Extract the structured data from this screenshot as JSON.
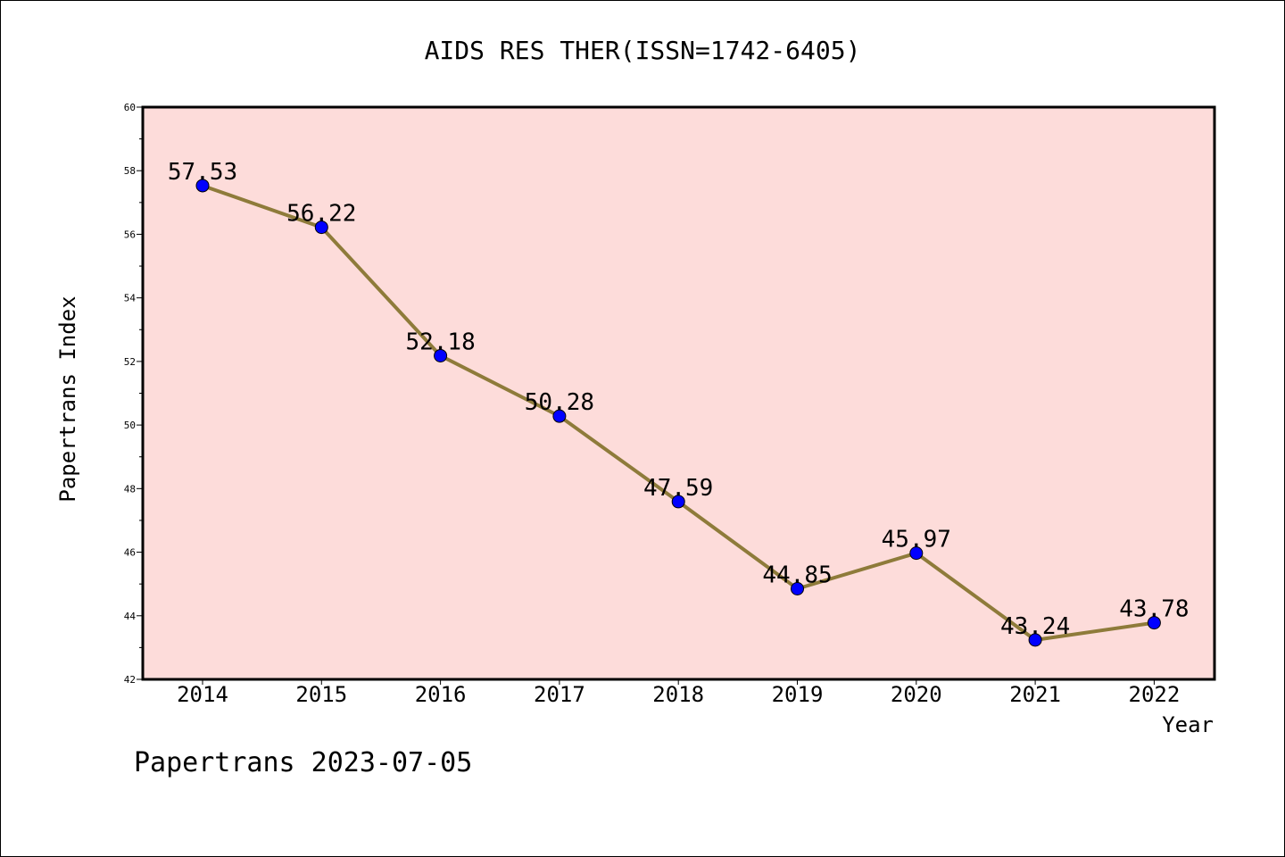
{
  "chart_data": {
    "type": "line",
    "title": "AIDS RES THER(ISSN=1742-6405)",
    "xlabel": "Year",
    "ylabel": "Papertrans Index",
    "categories": [
      "2014",
      "2015",
      "2016",
      "2017",
      "2018",
      "2019",
      "2020",
      "2021",
      "2022"
    ],
    "series": [
      {
        "values": [
          57.53,
          56.22,
          52.18,
          50.28,
          47.59,
          44.85,
          45.97,
          43.24,
          43.78
        ],
        "labels": [
          "57.53",
          "56.22",
          "52.18",
          "50.28",
          "47.59",
          "44.85",
          "45.97",
          "43.24",
          "43.78"
        ]
      }
    ],
    "ylim": [
      42,
      60
    ],
    "yticks": [
      "42",
      "44",
      "46",
      "48",
      "50",
      "52",
      "54",
      "56",
      "58",
      "60"
    ],
    "grid": false,
    "colors": {
      "plot_background": "#FDDCDA",
      "line": "#8E7B3A",
      "marker": "#0000FF"
    }
  },
  "footer": "Papertrans 2023-07-05"
}
